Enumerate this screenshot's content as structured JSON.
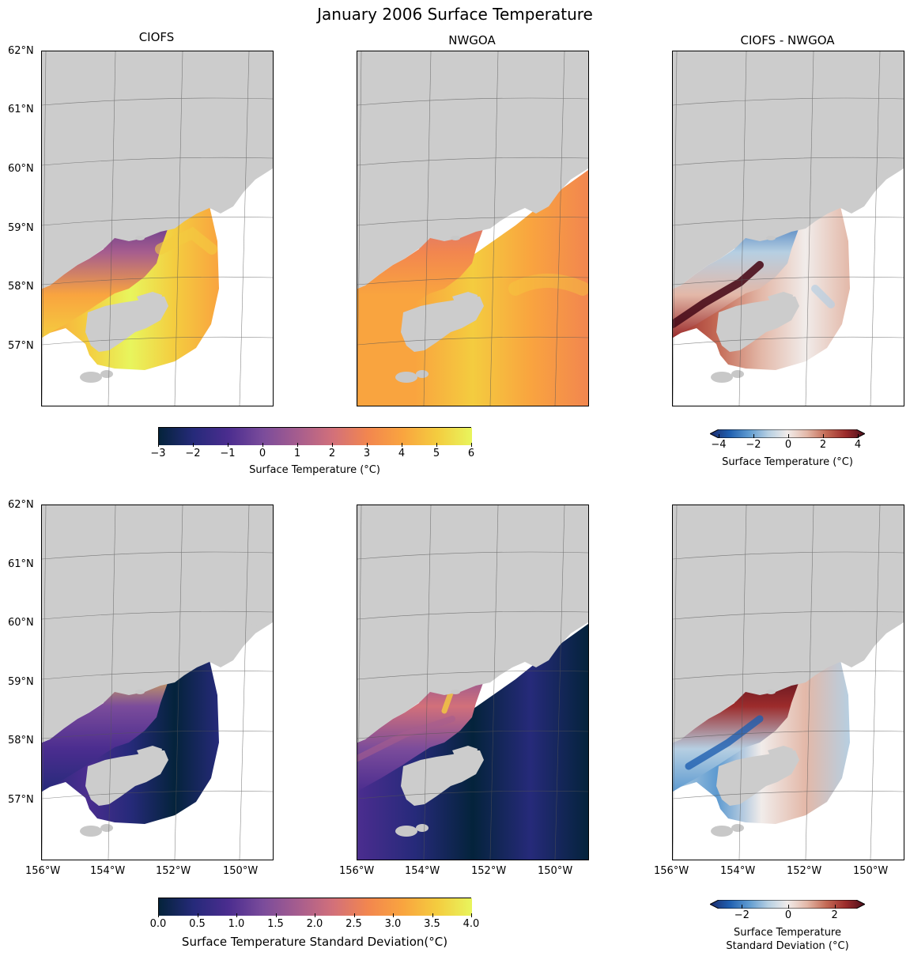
{
  "title": "January 2006 Surface Temperature",
  "columns": [
    "CIOFS",
    "NWGOA",
    "CIOFS - NWGOA"
  ],
  "lat_labels": [
    "62°N",
    "61°N",
    "60°N",
    "59°N",
    "58°N",
    "57°N"
  ],
  "lon_labels": [
    "156°W",
    "154°W",
    "152°W",
    "150°W"
  ],
  "row1": {
    "cbar_main": {
      "ticks": [
        "−3",
        "−2",
        "−1",
        "0",
        "1",
        "2",
        "3",
        "4",
        "5",
        "6"
      ],
      "label": "Surface Temperature (°C)"
    },
    "cbar_diff": {
      "ticks": [
        "−4",
        "−2",
        "0",
        "2",
        "4"
      ],
      "label": "Surface Temperature (°C)"
    }
  },
  "row2": {
    "cbar_main": {
      "ticks": [
        "0.0",
        "0.5",
        "1.0",
        "1.5",
        "2.0",
        "2.5",
        "3.0",
        "3.5",
        "4.0"
      ],
      "label": "Surface Temperature Standard Deviation(°C)"
    },
    "cbar_diff": {
      "ticks": [
        "−2",
        "0",
        "2"
      ],
      "label_line1": "Surface Temperature",
      "label_line2": "Standard Deviation (°C)"
    }
  },
  "colormaps": {
    "thermal": [
      "#04233b",
      "#262a7a",
      "#4b2d8f",
      "#7b4c9b",
      "#a65d8e",
      "#d2707a",
      "#f2864f",
      "#f9a43f",
      "#f4cc3f",
      "#e8f55d"
    ],
    "balance": [
      "#1b2a6b",
      "#1f5fb0",
      "#5d9ad0",
      "#b6cfe2",
      "#f1ecea",
      "#e3b8a8",
      "#c46a55",
      "#9c2b2b",
      "#4a0d1b"
    ],
    "land": "#cccccc",
    "grid": "#555555"
  }
}
